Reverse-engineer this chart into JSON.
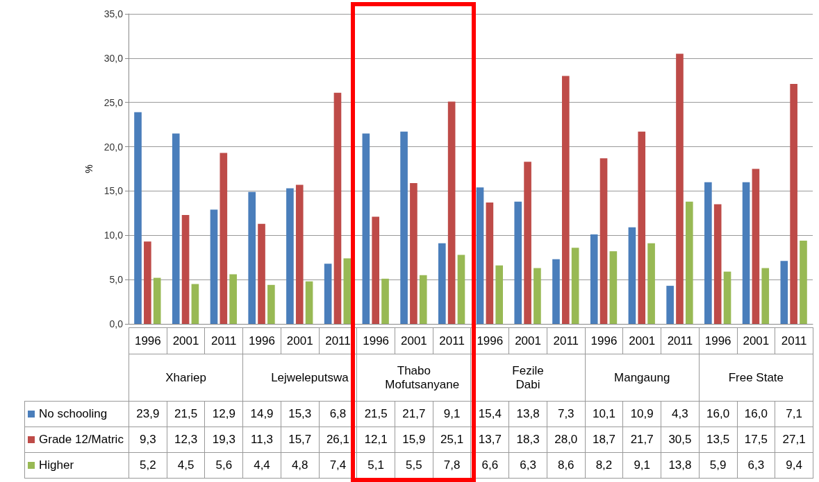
{
  "chart_data": {
    "type": "bar",
    "ylabel": "%",
    "categories": [
      "1996",
      "2001",
      "2011",
      "1996",
      "2001",
      "2011",
      "1996",
      "2001",
      "2011",
      "1996",
      "2001",
      "2011",
      "1996",
      "2001",
      "2011",
      "1996",
      "2001",
      "2011"
    ],
    "annotations": [
      "Xhariep",
      "Lejweleputswa",
      "Thabo Mofutsanyane",
      "Fezile Dabi",
      "Mangaung",
      "Free State"
    ],
    "series": [
      {
        "name": "No schooling",
        "color": "#4a7ebb",
        "values": [
          23.9,
          21.5,
          12.9,
          14.9,
          15.3,
          6.8,
          21.5,
          21.7,
          9.1,
          15.4,
          13.8,
          7.3,
          10.1,
          10.9,
          4.3,
          16.0,
          16.0,
          7.1
        ],
        "value_labels": [
          "23,9",
          "21,5",
          "12,9",
          "14,9",
          "15,3",
          "6,8",
          "21,5",
          "21,7",
          "9,1",
          "15,4",
          "13,8",
          "7,3",
          "10,1",
          "10,9",
          "4,3",
          "16,0",
          "16,0",
          "7,1"
        ]
      },
      {
        "name": "Grade 12/Matric",
        "color": "#be4b48",
        "values": [
          9.3,
          12.3,
          19.3,
          11.3,
          15.7,
          26.1,
          12.1,
          15.9,
          25.1,
          13.7,
          18.3,
          28.0,
          18.7,
          21.7,
          30.5,
          13.5,
          17.5,
          27.1
        ],
        "value_labels": [
          "9,3",
          "12,3",
          "19,3",
          "11,3",
          "15,7",
          "26,1",
          "12,1",
          "15,9",
          "25,1",
          "13,7",
          "18,3",
          "28,0",
          "18,7",
          "21,7",
          "30,5",
          "13,5",
          "17,5",
          "27,1"
        ]
      },
      {
        "name": "Higher",
        "color": "#98b954",
        "values": [
          5.2,
          4.5,
          5.6,
          4.4,
          4.8,
          7.4,
          5.1,
          5.5,
          7.8,
          6.6,
          6.3,
          8.6,
          8.2,
          9.1,
          13.8,
          5.9,
          6.3,
          9.4
        ],
        "value_labels": [
          "5,2",
          "4,5",
          "5,6",
          "4,4",
          "4,8",
          "7,4",
          "5,1",
          "5,5",
          "7,8",
          "6,6",
          "6,3",
          "8,6",
          "8,2",
          "9,1",
          "13,8",
          "5,9",
          "6,3",
          "9,4"
        ]
      }
    ],
    "ylim": [
      0,
      35
    ],
    "yticks": [
      {
        "value": 0,
        "label": "0,0"
      },
      {
        "value": 5,
        "label": "5,0"
      },
      {
        "value": 10,
        "label": "10,0"
      },
      {
        "value": 15,
        "label": "15,0"
      },
      {
        "value": 20,
        "label": "20,0"
      },
      {
        "value": 25,
        "label": "25,0"
      },
      {
        "value": 30,
        "label": "30,0"
      },
      {
        "value": 35,
        "label": "35,0"
      }
    ],
    "grid": "y",
    "legend": "bottom left"
  }
}
